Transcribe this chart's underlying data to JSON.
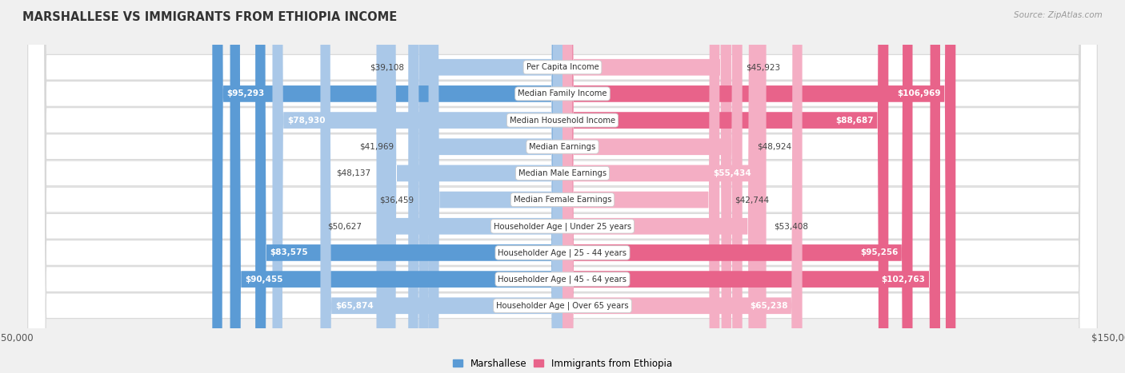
{
  "title": "MARSHALLESE VS IMMIGRANTS FROM ETHIOPIA INCOME",
  "source": "Source: ZipAtlas.com",
  "categories": [
    "Per Capita Income",
    "Median Family Income",
    "Median Household Income",
    "Median Earnings",
    "Median Male Earnings",
    "Median Female Earnings",
    "Householder Age | Under 25 years",
    "Householder Age | 25 - 44 years",
    "Householder Age | 45 - 64 years",
    "Householder Age | Over 65 years"
  ],
  "marshallese": [
    39108,
    95293,
    78930,
    41969,
    48137,
    36459,
    50627,
    83575,
    90455,
    65874
  ],
  "ethiopia": [
    45923,
    106969,
    88687,
    48924,
    55434,
    42744,
    53408,
    95256,
    102763,
    65238
  ],
  "marshallese_labels": [
    "$39,108",
    "$95,293",
    "$78,930",
    "$41,969",
    "$48,137",
    "$36,459",
    "$50,627",
    "$83,575",
    "$90,455",
    "$65,874"
  ],
  "ethiopia_labels": [
    "$45,923",
    "$106,969",
    "$88,687",
    "$48,924",
    "$55,434",
    "$42,744",
    "$53,408",
    "$95,256",
    "$102,763",
    "$65,238"
  ],
  "color_marshallese_light": "#aac8e8",
  "color_marshallese_dark": "#5b9bd5",
  "color_ethiopia_light": "#f4aec4",
  "color_ethiopia_dark": "#e8638a",
  "max_value": 150000,
  "background_color": "#f0f0f0",
  "row_bg_color": "#ffffff",
  "legend_label_1": "Marshallese",
  "legend_label_2": "Immigrants from Ethiopia",
  "white_label_threshold": 60000,
  "inside_label_threshold": 55000
}
